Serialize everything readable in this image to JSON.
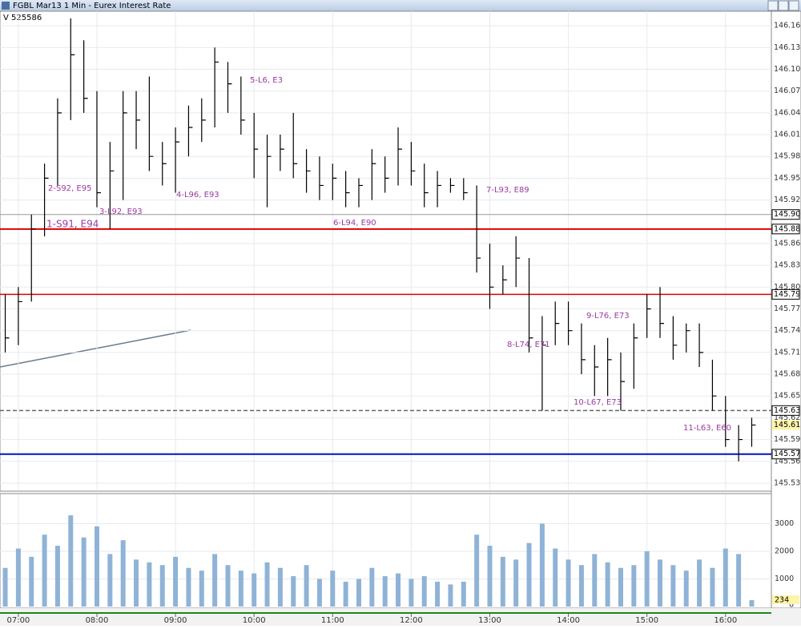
{
  "chart_data": {
    "type": "ohlc",
    "title": "FGBL Mar13 1 Min - Eurex Interest Rate",
    "subtitle": "V  525586",
    "x": [
      "06:50",
      "07:00",
      "07:10",
      "07:20",
      "07:30",
      "07:40",
      "07:50",
      "08:00",
      "08:10",
      "08:20",
      "08:30",
      "08:40",
      "08:50",
      "09:00",
      "09:10",
      "09:20",
      "09:30",
      "09:40",
      "09:50",
      "10:00",
      "10:10",
      "10:20",
      "10:30",
      "10:40",
      "10:50",
      "11:00",
      "11:10",
      "11:20",
      "11:30",
      "11:40",
      "11:50",
      "12:00",
      "12:10",
      "12:20",
      "12:30",
      "12:40",
      "12:50",
      "13:00",
      "13:10",
      "13:20",
      "13:30",
      "13:40",
      "13:50",
      "14:00",
      "14:10",
      "14:20",
      "14:30",
      "14:40",
      "14:50",
      "15:00",
      "15:10",
      "15:20",
      "15:30",
      "15:40",
      "15:50",
      "16:00",
      "16:10",
      "16:20"
    ],
    "high": [
      145.79,
      145.8,
      145.9,
      145.97,
      146.06,
      146.17,
      146.14,
      146.07,
      146.0,
      146.07,
      146.07,
      146.09,
      146.0,
      146.02,
      146.05,
      146.06,
      146.13,
      146.11,
      146.09,
      146.04,
      146.01,
      146.01,
      146.04,
      145.99,
      145.98,
      145.97,
      145.96,
      145.95,
      145.99,
      145.98,
      146.02,
      146.0,
      145.97,
      145.96,
      145.95,
      145.95,
      145.94,
      145.86,
      145.83,
      145.87,
      145.84,
      145.76,
      145.78,
      145.78,
      145.75,
      145.72,
      145.73,
      145.71,
      145.75,
      145.79,
      145.8,
      145.76,
      145.75,
      145.75,
      145.7,
      145.65,
      145.61,
      145.62
    ],
    "low": [
      145.71,
      145.72,
      145.78,
      145.87,
      145.94,
      146.03,
      146.04,
      145.91,
      145.88,
      145.92,
      145.99,
      145.96,
      145.94,
      145.93,
      145.98,
      146.0,
      146.02,
      146.04,
      146.01,
      145.95,
      145.91,
      145.96,
      145.95,
      145.93,
      145.92,
      145.92,
      145.91,
      145.91,
      145.92,
      145.93,
      145.94,
      145.94,
      145.91,
      145.91,
      145.93,
      145.92,
      145.82,
      145.77,
      145.79,
      145.8,
      145.71,
      145.63,
      145.72,
      145.72,
      145.68,
      145.65,
      145.65,
      145.63,
      145.66,
      145.73,
      145.73,
      145.7,
      145.71,
      145.69,
      145.63,
      145.58,
      145.56,
      145.58
    ],
    "close": [
      145.73,
      145.78,
      145.88,
      145.95,
      146.04,
      146.12,
      146.06,
      145.93,
      145.96,
      146.04,
      146.03,
      145.98,
      145.97,
      146.0,
      146.02,
      146.03,
      146.11,
      146.08,
      146.03,
      145.99,
      145.98,
      145.99,
      145.97,
      145.96,
      145.94,
      145.95,
      145.93,
      145.94,
      145.97,
      145.95,
      145.99,
      145.96,
      145.93,
      145.94,
      145.94,
      145.93,
      145.84,
      145.8,
      145.81,
      145.84,
      145.73,
      145.72,
      145.75,
      145.74,
      145.7,
      145.69,
      145.7,
      145.67,
      145.73,
      145.77,
      145.75,
      145.72,
      145.74,
      145.71,
      145.65,
      145.59,
      145.59,
      145.61
    ],
    "volume": [
      1400,
      2100,
      1800,
      2600,
      2200,
      3300,
      2500,
      2900,
      1900,
      2400,
      1700,
      1600,
      1500,
      1800,
      1400,
      1300,
      1900,
      1500,
      1300,
      1200,
      1600,
      1400,
      1100,
      1500,
      1000,
      1300,
      900,
      1000,
      1400,
      1100,
      1200,
      1000,
      1100,
      900,
      800,
      900,
      2600,
      2200,
      1800,
      1700,
      2300,
      3000,
      2100,
      1700,
      1500,
      1900,
      1600,
      1400,
      1500,
      2000,
      1700,
      1500,
      1300,
      1700,
      1400,
      2100,
      1900,
      234
    ],
    "volume_last": 234,
    "color": "#000000",
    "volume_color": "#8fb3d6",
    "xlim": [
      "06:46",
      "16:35"
    ],
    "xticks": [
      "07:00",
      "08:00",
      "09:00",
      "10:00",
      "11:00",
      "12:00",
      "13:00",
      "14:00",
      "15:00",
      "16:00"
    ],
    "ylim": [
      145.52,
      146.18
    ],
    "yticks": [
      146.16,
      146.13,
      {
        "value": 146.1,
        "label": "146.10"
      },
      146.07,
      146.04,
      146.01,
      145.98,
      145.95,
      145.92,
      145.86,
      145.83,
      {
        "value": 145.8,
        "label": "145.80"
      },
      145.77,
      145.74,
      145.71,
      145.68,
      145.65,
      145.62,
      145.59,
      145.56,
      145.53
    ],
    "vlim": [
      0,
      4000
    ],
    "vticks": [
      1000,
      2000,
      3000
    ],
    "vbase": 0,
    "last_price": {
      "value": 145.61,
      "label": "145.61"
    },
    "levels": [
      {
        "value": 145.9,
        "label": "145.90",
        "color": "#999999",
        "dash": false,
        "width": 1
      },
      {
        "value": 145.88,
        "label": "145.88",
        "color": "#e00000",
        "dash": false,
        "width": 2
      },
      {
        "value": 145.79,
        "label": "145.79",
        "color": "#e00000",
        "dash": false,
        "width": 1.5
      },
      {
        "value": 145.63,
        "label": "145.63",
        "color": "#666666",
        "dash": true,
        "width": 1.5
      },
      {
        "value": 145.57,
        "label": "145.57",
        "color": "#0010d0",
        "dash": false,
        "width": 2
      }
    ],
    "annotations": [
      "1-S91, E94",
      "2-S92, E95",
      "3-L92, E93",
      "4-L96, E93",
      "5-L6, E3",
      "6-L94, E90",
      "7-L93, E89",
      "8-L74, E71",
      "9-L76, E73",
      "10-L67, E73",
      "11-L63, E60"
    ],
    "annotation_color": "#9a3aa0",
    "grid": true
  }
}
